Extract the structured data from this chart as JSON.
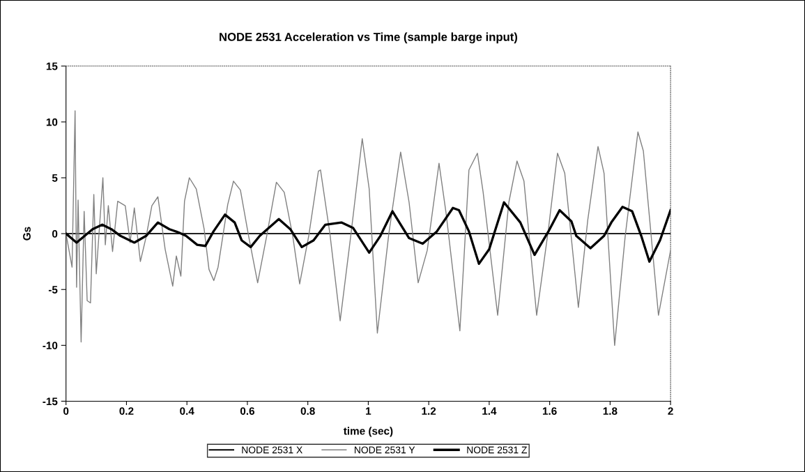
{
  "chart_data": {
    "type": "line",
    "title": "NODE 2531 Acceleration vs Time (sample barge input)",
    "xlabel": "time (sec)",
    "ylabel": "Gs",
    "xlim": [
      0,
      2
    ],
    "xticks": [
      0,
      0.2,
      0.4,
      0.6,
      0.8,
      1,
      1.2,
      1.4,
      1.6,
      1.8,
      2
    ],
    "ylim": [
      -15,
      15
    ],
    "yticks": [
      -15,
      -10,
      -5,
      0,
      5,
      10,
      15
    ],
    "grid": false,
    "legend": "bottom",
    "marker": "none",
    "line_style": "solid",
    "series": [
      {
        "name": "NODE 2531 X",
        "color": "#000000",
        "x": [
          0,
          2
        ],
        "values": [
          0,
          0
        ]
      },
      {
        "name": "NODE 2531 Y",
        "color": "#808080",
        "x": [
          0,
          0.02,
          0.03,
          0.035,
          0.04,
          0.05,
          0.06,
          0.07,
          0.081,
          0.092,
          0.1,
          0.122,
          0.13,
          0.14,
          0.154,
          0.171,
          0.196,
          0.212,
          0.226,
          0.246,
          0.265,
          0.284,
          0.304,
          0.328,
          0.353,
          0.365,
          0.38,
          0.392,
          0.408,
          0.431,
          0.457,
          0.473,
          0.489,
          0.503,
          0.535,
          0.554,
          0.577,
          0.604,
          0.634,
          0.664,
          0.696,
          0.722,
          0.75,
          0.773,
          0.803,
          0.835,
          0.842,
          0.873,
          0.907,
          0.942,
          0.98,
          1.003,
          1.03,
          1.068,
          1.107,
          1.135,
          1.165,
          1.195,
          1.234,
          1.257,
          1.303,
          1.333,
          1.361,
          1.38,
          1.428,
          1.465,
          1.492,
          1.515,
          1.557,
          1.596,
          1.626,
          1.65,
          1.695,
          1.726,
          1.76,
          1.78,
          1.815,
          1.85,
          1.892,
          1.91,
          1.96,
          2.0
        ],
        "values": [
          0,
          -3,
          11,
          -4.8,
          3,
          -9.7,
          2,
          -6,
          -6.2,
          3.5,
          -3.6,
          5.0,
          -1.0,
          2.5,
          -1.6,
          2.9,
          2.5,
          -0.8,
          2.3,
          -2.5,
          -0.3,
          2.5,
          3.3,
          -1.4,
          -4.7,
          -2.0,
          -3.8,
          2.9,
          5.0,
          4.0,
          0.4,
          -3.2,
          -4.2,
          -3.0,
          2.6,
          4.7,
          3.9,
          -0.2,
          -4.4,
          -0.2,
          4.6,
          3.7,
          -0.2,
          -4.5,
          -0.2,
          5.6,
          5.7,
          0,
          -7.8,
          -0.2,
          8.5,
          4.0,
          -8.9,
          0,
          7.3,
          2.8,
          -4.4,
          -1.5,
          6.3,
          1.9,
          -8.7,
          5.7,
          7.2,
          3.7,
          -7.3,
          2.8,
          6.5,
          4.7,
          -7.3,
          0.4,
          7.2,
          5.4,
          -6.6,
          1.2,
          7.8,
          5.4,
          -10,
          -0.2,
          9.1,
          7.4,
          -7.3,
          -1.5
        ]
      },
      {
        "name": "NODE 2531 Z",
        "color": "#000000",
        "x": [
          0,
          0.035,
          0.088,
          0.12,
          0.15,
          0.18,
          0.226,
          0.265,
          0.304,
          0.342,
          0.373,
          0.397,
          0.434,
          0.461,
          0.488,
          0.526,
          0.558,
          0.581,
          0.611,
          0.641,
          0.704,
          0.742,
          0.78,
          0.819,
          0.858,
          0.911,
          0.95,
          1.003,
          1.04,
          1.08,
          1.135,
          1.18,
          1.227,
          1.28,
          1.3,
          1.333,
          1.366,
          1.4,
          1.449,
          1.503,
          1.55,
          1.596,
          1.633,
          1.672,
          1.688,
          1.735,
          1.78,
          1.804,
          1.841,
          1.873,
          1.903,
          1.93,
          1.965,
          2.0
        ],
        "values": [
          0,
          -0.8,
          0.4,
          0.8,
          0.4,
          -0.2,
          -0.8,
          -0.2,
          1.0,
          0.4,
          0.1,
          -0.2,
          -1.0,
          -1.1,
          0.2,
          1.7,
          1.0,
          -0.6,
          -1.2,
          -0.2,
          1.3,
          0.4,
          -1.2,
          -0.6,
          0.8,
          1.0,
          0.5,
          -1.7,
          -0.2,
          2.0,
          -0.4,
          -0.9,
          0.2,
          2.3,
          2.1,
          0.2,
          -2.7,
          -1.4,
          2.8,
          1.0,
          -1.9,
          0.2,
          2.1,
          1.1,
          -0.2,
          -1.3,
          -0.2,
          1.0,
          2.4,
          2.0,
          -0.2,
          -2.5,
          -0.6,
          2.1
        ]
      }
    ]
  }
}
